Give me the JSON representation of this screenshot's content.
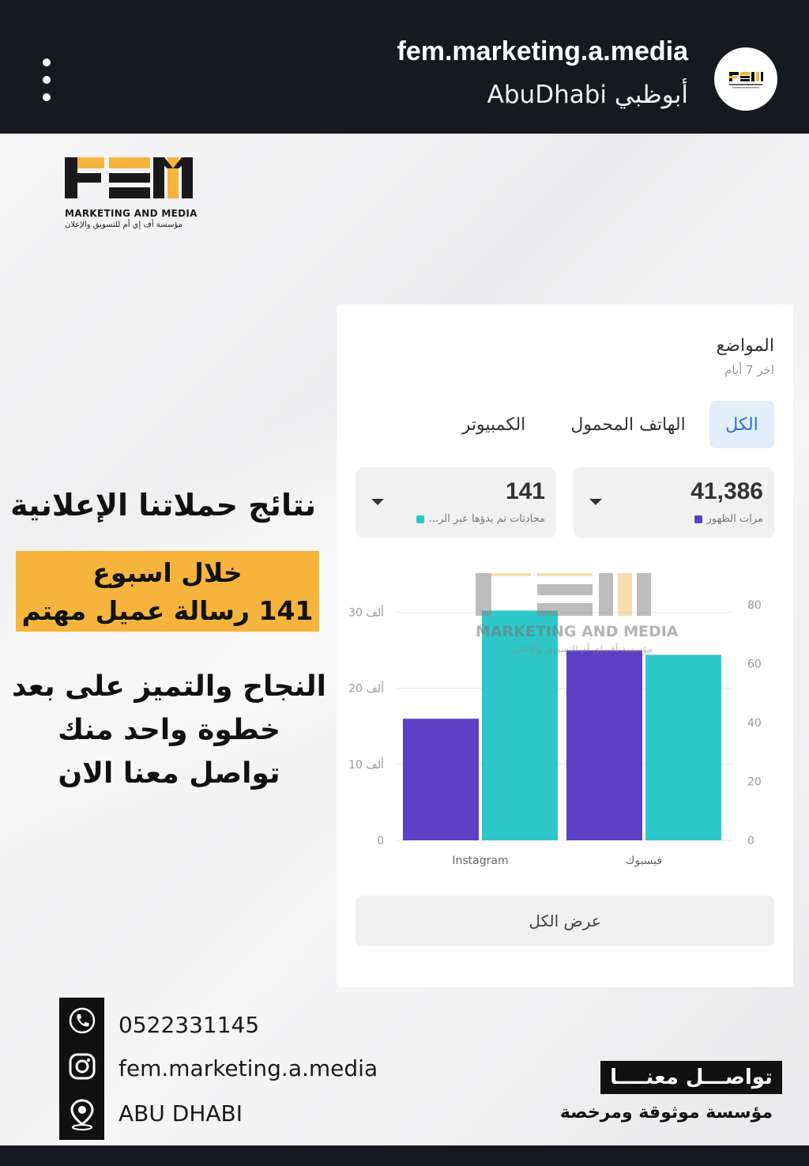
{
  "header": {
    "account_name": "fem.marketing.a.media",
    "location": "AbuDhabi أبوظبي",
    "menu_icon": "more-vertical-icon",
    "avatar_icon": "fem-logo-avatar"
  },
  "logo": {
    "mark": "FEM",
    "line1": "MARKETING AND MEDIA",
    "line2": "مؤسسة أف إي أم للتسويق والإعلان"
  },
  "poster": {
    "headline": "نتائج حملاتنا الإعلانية",
    "highlight_line1": "خلال اسبوع",
    "highlight_line2": "141 رسالة عميل مهتم",
    "slogan_line1": "النجاح والتميز على بعد",
    "slogan_line2": "خطوة واحد منك",
    "slogan_line3": "تواصل معنا الان"
  },
  "card": {
    "title": "المواضع",
    "subtitle": "اخر 7 أيام",
    "tabs": [
      {
        "label": "الكل",
        "active": true
      },
      {
        "label": "الهاتف المحمول",
        "active": false
      },
      {
        "label": "الكمبيوتر",
        "active": false
      }
    ],
    "metrics": [
      {
        "value": "41,386",
        "label": "مرات الظهور",
        "color": "#5b3fc4"
      },
      {
        "value": "141",
        "label": "محادثات تم بدؤها عبر الر...",
        "color": "#2ec7c9"
      }
    ],
    "view_all": "عرض الكل"
  },
  "chart_data": {
    "type": "bar",
    "categories": [
      "Instagram",
      "فيسبوك"
    ],
    "series": [
      {
        "name": "مرات الظهور",
        "color": "#5b3fc4",
        "axis": "left",
        "values": [
          16000,
          25000
        ]
      },
      {
        "name": "محادثات تم بدؤها عبر الر...",
        "color": "#2ec7c9",
        "axis": "right",
        "values": [
          78,
          63
        ]
      }
    ],
    "left_axis": {
      "ticks": [
        "0",
        "10 ألف",
        "20 ألف",
        "30 ألف"
      ],
      "max": 31000
    },
    "right_axis": {
      "ticks": [
        "0",
        "20",
        "40",
        "60",
        "80"
      ],
      "max": 80
    },
    "grid": true
  },
  "watermark": {
    "mark": "FEM",
    "line1": "MARKETING AND MEDIA",
    "line2": "مؤسسة أف إي أم للتسويق والإعلان"
  },
  "contact": {
    "phone": "0522331145",
    "instagram": "fem.marketing.a.media",
    "location": "ABU DHABI",
    "phone_icon": "phone-icon",
    "instagram_icon": "instagram-icon",
    "location_icon": "map-pin-icon",
    "button": "تواصـــل معنــــا",
    "tagline": "مؤسسة موثوقة ومرخصة"
  },
  "colors": {
    "accent_yellow": "#f6b43c",
    "purple": "#5b3fc4",
    "teal": "#2ec7c9",
    "dark": "#16191e"
  }
}
